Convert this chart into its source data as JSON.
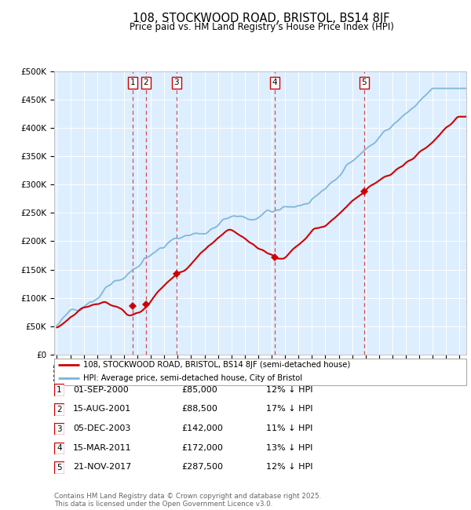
{
  "title": "108, STOCKWOOD ROAD, BRISTOL, BS14 8JF",
  "subtitle": "Price paid vs. HM Land Registry's House Price Index (HPI)",
  "bg_color": "#ddeeff",
  "hpi_color": "#7ab4d8",
  "price_color": "#cc0000",
  "vline_color": "#cc3333",
  "ylim": [
    0,
    500000
  ],
  "yticks": [
    0,
    50000,
    100000,
    150000,
    200000,
    250000,
    300000,
    350000,
    400000,
    450000,
    500000
  ],
  "ytick_labels": [
    "£0",
    "£50K",
    "£100K",
    "£150K",
    "£200K",
    "£250K",
    "£300K",
    "£350K",
    "£400K",
    "£450K",
    "£500K"
  ],
  "xlim_start": 1994.8,
  "xlim_end": 2025.5,
  "transactions": [
    {
      "num": 1,
      "date_str": "01-SEP-2000",
      "date_x": 2000.67,
      "price": 85000
    },
    {
      "num": 2,
      "date_str": "15-AUG-2001",
      "date_x": 2001.62,
      "price": 88500
    },
    {
      "num": 3,
      "date_str": "05-DEC-2003",
      "date_x": 2003.92,
      "price": 142000
    },
    {
      "num": 4,
      "date_str": "15-MAR-2011",
      "date_x": 2011.21,
      "price": 172000
    },
    {
      "num": 5,
      "date_str": "21-NOV-2017",
      "date_x": 2017.89,
      "price": 287500
    }
  ],
  "legend_line1": "108, STOCKWOOD ROAD, BRISTOL, BS14 8JF (semi-detached house)",
  "legend_line2": "HPI: Average price, semi-detached house, City of Bristol",
  "table_rows": [
    [
      "1",
      "01-SEP-2000",
      "£85,000",
      "12% ↓ HPI"
    ],
    [
      "2",
      "15-AUG-2001",
      "£88,500",
      "17% ↓ HPI"
    ],
    [
      "3",
      "05-DEC-2003",
      "£142,000",
      "11% ↓ HPI"
    ],
    [
      "4",
      "15-MAR-2011",
      "£172,000",
      "13% ↓ HPI"
    ],
    [
      "5",
      "21-NOV-2017",
      "£287,500",
      "12% ↓ HPI"
    ]
  ],
  "footer": "Contains HM Land Registry data © Crown copyright and database right 2025.\nThis data is licensed under the Open Government Licence v3.0."
}
